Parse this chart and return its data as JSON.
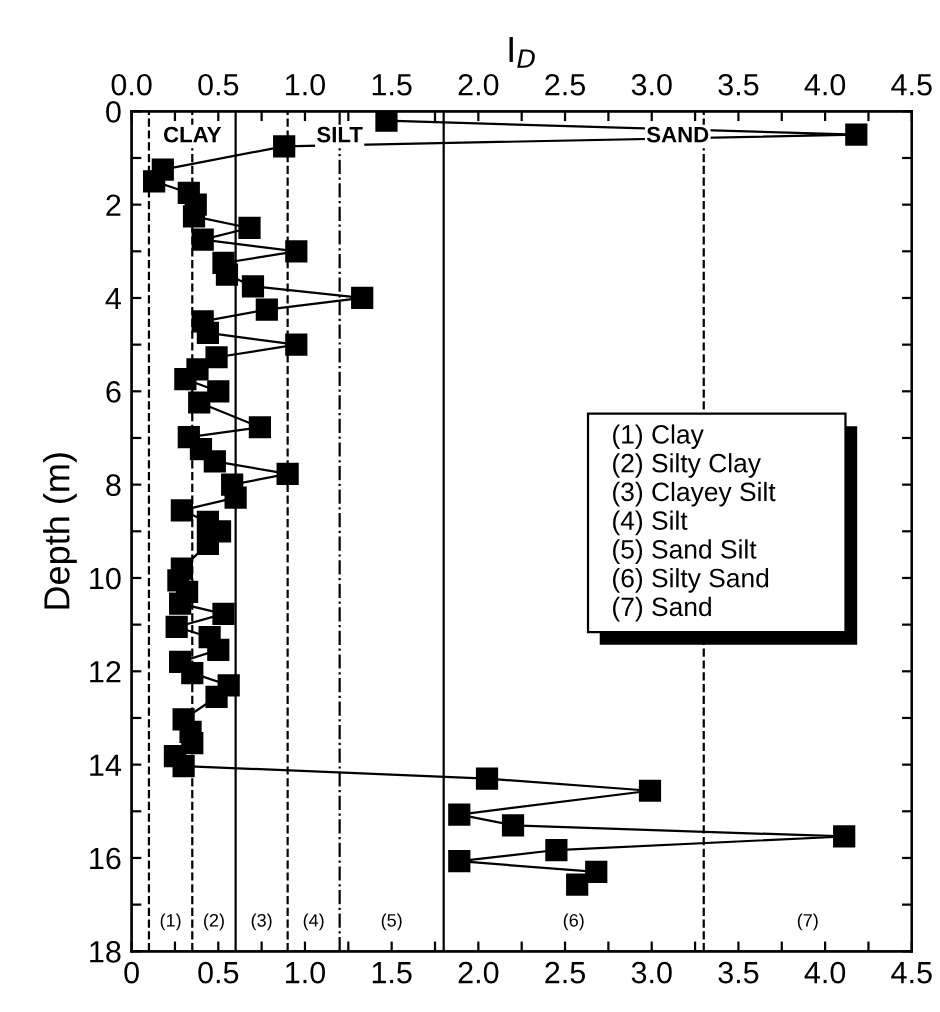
{
  "chart_data": {
    "type": "line",
    "x2label": "I$_{D}$",
    "ylabel": "Depth (m)",
    "marker": "square",
    "line_style": "solid",
    "grid": false,
    "series": [
      {
        "color": "#000000",
        "x": [
          1.47,
          4.18,
          0.88,
          0.18,
          0.13,
          0.33,
          0.37,
          0.36,
          0.68,
          0.41,
          0.95,
          0.53,
          0.55,
          0.7,
          1.33,
          0.78,
          0.41,
          0.44,
          0.95,
          0.49,
          0.38,
          0.31,
          0.5,
          0.39,
          0.74,
          0.33,
          0.4,
          0.48,
          0.9,
          0.58,
          0.6,
          0.29,
          0.44,
          0.51,
          0.44,
          0.29,
          0.27,
          0.32,
          0.28,
          0.53,
          0.26,
          0.45,
          0.5,
          0.28,
          0.35,
          0.56,
          0.49,
          0.3,
          0.34,
          0.35,
          0.25,
          0.3,
          2.05,
          2.99,
          1.89,
          2.2,
          4.11,
          2.45,
          1.89,
          2.68,
          2.57
        ],
        "values": [
          0.2,
          0.5,
          0.75,
          1.25,
          1.5,
          1.75,
          2.0,
          2.25,
          2.5,
          2.75,
          3.0,
          3.25,
          3.5,
          3.75,
          4.0,
          4.25,
          4.5,
          4.75,
          5.0,
          5.27,
          5.53,
          5.74,
          6.0,
          6.24,
          6.77,
          6.98,
          7.24,
          7.5,
          7.77,
          8.0,
          8.28,
          8.55,
          8.8,
          9.0,
          9.27,
          9.8,
          10.05,
          10.3,
          10.55,
          10.77,
          11.05,
          11.27,
          11.54,
          11.8,
          12.04,
          12.3,
          12.55,
          13.03,
          13.3,
          13.54,
          13.82,
          14.03,
          14.3,
          14.56,
          15.07,
          15.3,
          15.54,
          15.83,
          16.07,
          16.3,
          16.57
        ]
      }
    ],
    "xlim": [
      0,
      4.5
    ],
    "x2lim": [
      0,
      4.5
    ],
    "xticks": [
      0,
      {
        "value": 0.25,
        "label": null
      },
      {
        "value": 0.5,
        "label": "0.5"
      },
      {
        "value": 0.75,
        "label": null
      },
      {
        "value": 1,
        "label": "1.0"
      },
      {
        "value": 1.25,
        "label": null
      },
      {
        "value": 1.5,
        "label": "1.5"
      },
      {
        "value": 1.75,
        "label": null
      },
      {
        "value": 2,
        "label": "2.0"
      },
      {
        "value": 2.25,
        "label": null
      },
      {
        "value": 2.5,
        "label": "2.5"
      },
      {
        "value": 2.75,
        "label": null
      },
      {
        "value": 3,
        "label": "3.0"
      },
      {
        "value": 3.25,
        "label": null
      },
      {
        "value": 3.5,
        "label": "3.5"
      },
      {
        "value": 3.75,
        "label": null
      },
      {
        "value": 4,
        "label": "4.0"
      },
      {
        "value": 4.25,
        "label": null
      },
      {
        "value": 4.5,
        "label": "4.5"
      }
    ],
    "x2ticks": [
      {
        "value": 0,
        "label": "0.0"
      },
      {
        "value": 0.25,
        "label": null
      },
      {
        "value": 0.5,
        "label": "0.5"
      },
      {
        "value": 0.75,
        "label": null
      },
      {
        "value": 1,
        "label": "1.0"
      },
      {
        "value": 1.25,
        "label": null
      },
      {
        "value": 1.5,
        "label": "1.5"
      },
      {
        "value": 1.75,
        "label": null
      },
      {
        "value": 2,
        "label": "2.0"
      },
      {
        "value": 2.25,
        "label": null
      },
      {
        "value": 2.5,
        "label": "2.5"
      },
      {
        "value": 2.75,
        "label": null
      },
      {
        "value": 3,
        "label": "3.0"
      },
      {
        "value": 3.25,
        "label": null
      },
      {
        "value": 3.5,
        "label": "3.5"
      },
      {
        "value": 3.75,
        "label": null
      },
      {
        "value": 4,
        "label": "4.0"
      },
      {
        "value": 4.25,
        "label": null
      },
      {
        "value": 4.5,
        "label": "4.5"
      }
    ],
    "ylim": [
      18,
      0
    ],
    "yticks": [
      0,
      {
        "value": 1,
        "label": null
      },
      2,
      {
        "value": 3,
        "label": null
      },
      4,
      {
        "value": 5,
        "label": null
      },
      6,
      {
        "value": 7,
        "label": null
      },
      8,
      {
        "value": 9,
        "label": null
      },
      10,
      {
        "value": 11,
        "label": null
      },
      12,
      {
        "value": 13,
        "label": null
      },
      14,
      {
        "value": 15,
        "label": null
      },
      16,
      {
        "value": 17,
        "label": null
      },
      18
    ],
    "ref_lines": [
      {
        "axis": "x",
        "value": 0.1,
        "line_style": "dashed",
        "color": "#000000"
      },
      {
        "axis": "x",
        "value": 0.35,
        "line_style": "dashed",
        "color": "#000000"
      },
      {
        "axis": "x",
        "value": 0.6,
        "line_style": "solid",
        "color": "#000000"
      },
      {
        "axis": "x",
        "value": 0.9,
        "line_style": "dashed",
        "color": "#000000"
      },
      {
        "axis": "x",
        "value": 1.2,
        "line_style": "dashdot",
        "color": "#000000"
      },
      {
        "axis": "x",
        "value": 1.8,
        "line_style": "solid",
        "color": "#000000"
      },
      {
        "axis": "x",
        "value": 3.3,
        "line_style": "dashed",
        "color": "#000000"
      }
    ],
    "annotations": [
      "CLAY",
      "SILT",
      "SAND",
      "(1)",
      "(2)",
      "(3)",
      "(4)",
      "(5)",
      "(6)",
      "(7)",
      "(1) Clay",
      "(2) Silty Clay",
      "(3) Clayey Silt",
      "(4) Silt",
      "(5) Sand Silt",
      "(6) Silty Sand",
      "(7) Sand"
    ]
  }
}
